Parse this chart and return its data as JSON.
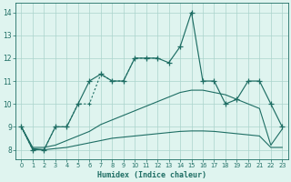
{
  "xlabel": "Humidex (Indice chaleur)",
  "x": [
    0,
    1,
    2,
    3,
    4,
    5,
    6,
    7,
    8,
    9,
    10,
    11,
    12,
    13,
    14,
    15,
    16,
    17,
    18,
    19,
    20,
    21,
    22,
    23
  ],
  "line_main": [
    9,
    8,
    8,
    9,
    9,
    10,
    11,
    11.3,
    11,
    11,
    12,
    12,
    12,
    11.8,
    12.5,
    14,
    11,
    11,
    10,
    10.2,
    11,
    11,
    10,
    9
  ],
  "line_dot": [
    9,
    8,
    8,
    9,
    9,
    10,
    10,
    11.3,
    11,
    11,
    12,
    12,
    12,
    null,
    null,
    null,
    null,
    null,
    null,
    null,
    null,
    null,
    null,
    null
  ],
  "line_mid": [
    9,
    8.1,
    8.1,
    8.2,
    8.4,
    8.6,
    8.8,
    9.1,
    9.3,
    9.5,
    9.7,
    9.9,
    10.1,
    10.3,
    10.5,
    10.6,
    10.6,
    10.5,
    10.4,
    10.2,
    10.0,
    9.8,
    8.2,
    8.9
  ],
  "line_low": [
    9,
    8.05,
    8.0,
    8.05,
    8.1,
    8.2,
    8.3,
    8.4,
    8.5,
    8.55,
    8.6,
    8.65,
    8.7,
    8.75,
    8.8,
    8.82,
    8.82,
    8.8,
    8.75,
    8.7,
    8.65,
    8.6,
    8.1,
    8.1
  ],
  "bg_color": "#dff4ef",
  "line_color": "#1e6e64",
  "grid_color": "#aad4cc",
  "ylim": [
    7.6,
    14.4
  ],
  "xlim": [
    -0.5,
    23.5
  ],
  "yticks": [
    8,
    9,
    10,
    11,
    12,
    13,
    14
  ],
  "xticks": [
    0,
    1,
    2,
    3,
    4,
    5,
    6,
    7,
    8,
    9,
    10,
    11,
    12,
    13,
    14,
    15,
    16,
    17,
    18,
    19,
    20,
    21,
    22,
    23
  ]
}
